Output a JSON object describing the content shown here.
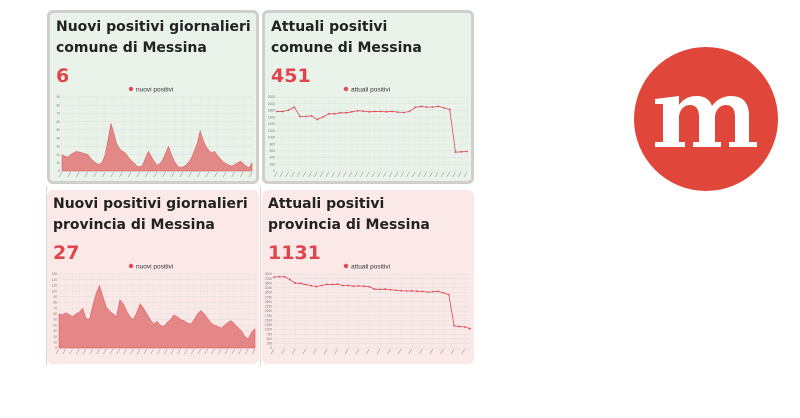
{
  "cards": [
    {
      "title_line1": "Nuovi positivi giornalieri",
      "title_line2": "comune di Messina",
      "value": "6",
      "chart_data": {
        "type": "area",
        "legend": "nuovi positivi",
        "legend_position": "top-center",
        "grid": true,
        "ylim": [
          0,
          90
        ],
        "y_ticks": [
          "0",
          "10",
          "20",
          "30",
          "40",
          "50",
          "60",
          "70",
          "80",
          "90"
        ],
        "values": [
          20,
          18,
          17,
          20,
          22,
          24,
          23,
          22,
          21,
          20,
          15,
          12,
          9,
          8,
          11,
          20,
          38,
          58,
          46,
          33,
          27,
          24,
          22,
          17,
          13,
          10,
          6,
          5,
          7,
          16,
          24,
          18,
          12,
          7,
          9,
          14,
          22,
          30,
          20,
          12,
          7,
          4,
          5,
          7,
          11,
          16,
          25,
          34,
          49,
          38,
          30,
          25,
          22,
          24,
          19,
          15,
          11,
          9,
          7,
          6,
          8,
          10,
          12,
          9,
          6,
          4,
          10
        ]
      },
      "color_scheme": "green"
    },
    {
      "title_line1": "Attuali positivi",
      "title_line2": "comune di Messina",
      "value": "451",
      "chart_data": {
        "type": "line",
        "legend": "attuali positivi",
        "legend_position": "top-center",
        "grid": true,
        "ylim": [
          0,
          2200
        ],
        "y_ticks": [
          "0",
          "200",
          "400",
          "600",
          "800",
          "1000",
          "1200",
          "1400",
          "1600",
          "1800",
          "2000",
          "2200"
        ],
        "values": [
          1770,
          1770,
          1810,
          1900,
          1620,
          1620,
          1640,
          1530,
          1610,
          1700,
          1700,
          1730,
          1730,
          1760,
          1790,
          1780,
          1760,
          1770,
          1770,
          1760,
          1770,
          1750,
          1740,
          1770,
          1890,
          1920,
          1900,
          1900,
          1920,
          1880,
          1830,
          560,
          570,
          580
        ]
      },
      "color_scheme": "green"
    },
    {
      "title_line1": "Nuovi positivi giornalieri",
      "title_line2": "provincia di Messina",
      "value": "27",
      "chart_data": {
        "type": "area",
        "legend": "nuovi positivi",
        "legend_position": "top-center",
        "grid": true,
        "ylim": [
          0,
          130
        ],
        "y_ticks": [
          "0",
          "10",
          "20",
          "30",
          "40",
          "50",
          "60",
          "70",
          "80",
          "90",
          "100",
          "110",
          "120",
          "130"
        ],
        "values": [
          60,
          58,
          62,
          59,
          55,
          60,
          63,
          70,
          52,
          50,
          75,
          96,
          110,
          90,
          72,
          65,
          60,
          55,
          85,
          78,
          65,
          55,
          50,
          62,
          78,
          70,
          60,
          50,
          42,
          47,
          40,
          38,
          45,
          50,
          58,
          55,
          50,
          48,
          44,
          42,
          50,
          60,
          66,
          60,
          52,
          44,
          40,
          38,
          35,
          40,
          45,
          48,
          42,
          36,
          30,
          20,
          16,
          28,
          34
        ]
      },
      "color_scheme": "pink"
    },
    {
      "title_line1": "Attuali positivi",
      "title_line2": "provincia di Messina",
      "value": "1131",
      "chart_data": {
        "type": "line",
        "legend": "attuali positivi",
        "legend_position": "top-center",
        "grid": true,
        "ylim": [
          0,
          4000
        ],
        "y_ticks": [
          "0",
          "250",
          "500",
          "750",
          "1000",
          "1250",
          "1500",
          "1750",
          "2000",
          "2250",
          "2500",
          "2750",
          "3000",
          "3250",
          "3500",
          "3750",
          "4000"
        ],
        "values": [
          3830,
          3860,
          3850,
          3700,
          3510,
          3490,
          3430,
          3370,
          3320,
          3380,
          3440,
          3430,
          3450,
          3370,
          3380,
          3340,
          3360,
          3340,
          3310,
          3180,
          3170,
          3180,
          3150,
          3120,
          3100,
          3080,
          3090,
          3070,
          3060,
          3020,
          3040,
          3060,
          2980,
          2880,
          1200,
          1160,
          1140,
          1050
        ]
      },
      "color_scheme": "pink"
    }
  ],
  "colors": {
    "accent": "#e0454f",
    "fill": "#e07575",
    "line": "#dd4c55",
    "green_bg": "#e9f3ea",
    "pink_bg": "#fbe9e8",
    "logo_red": "#e0473a"
  },
  "logo": {
    "letter": "m"
  }
}
